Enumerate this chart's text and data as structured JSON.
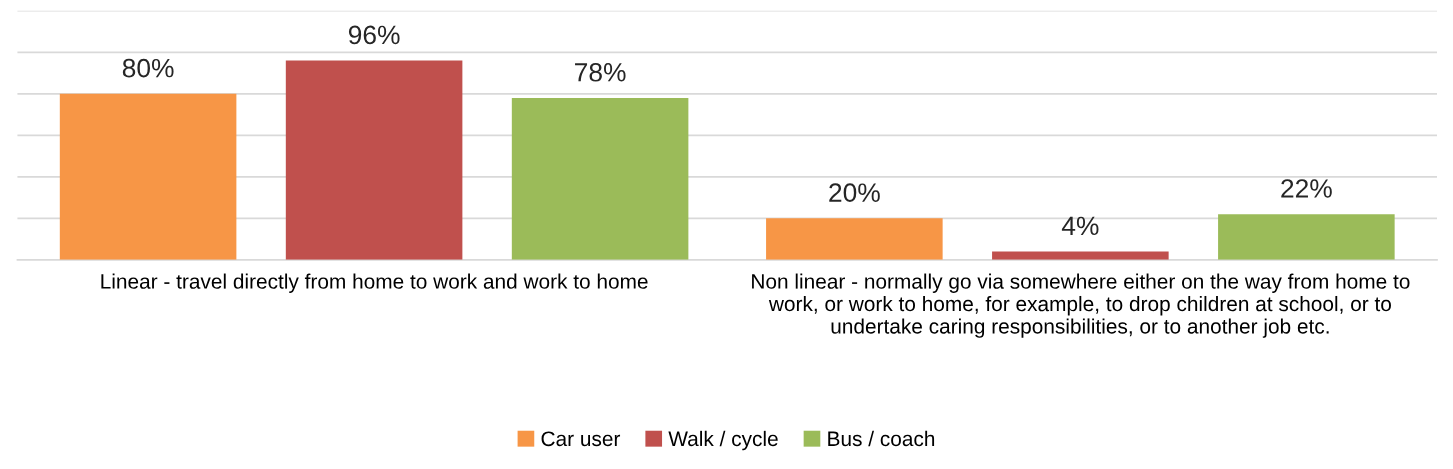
{
  "chart_data": {
    "type": "bar",
    "categories": [
      "Linear - travel directly from home to work and work to home",
      "Non linear - normally go via somewhere either on the way from home to work, or work to home, for example, to drop children at school, or to undertake caring responsibilities, or to another job etc."
    ],
    "series": [
      {
        "name": "Car user",
        "color": "#f79646",
        "values": [
          80,
          20
        ],
        "value_labels": [
          "80%",
          "20%"
        ]
      },
      {
        "name": "Walk / cycle",
        "color": "#c0504d",
        "values": [
          96,
          4
        ],
        "value_labels": [
          "96%",
          "4%"
        ]
      },
      {
        "name": "Bus / coach",
        "color": "#9bbb59",
        "values": [
          78,
          22
        ],
        "value_labels": [
          "78%",
          "22%"
        ]
      }
    ],
    "ylim": [
      0,
      120
    ],
    "yticks": [
      {
        "value": 0,
        "label": null
      },
      {
        "value": 20,
        "label": null
      },
      {
        "value": 40,
        "label": null
      },
      {
        "value": 60,
        "label": null
      },
      {
        "value": 80,
        "label": null
      },
      {
        "value": 100,
        "label": null
      },
      {
        "value": 120,
        "label": null
      }
    ],
    "grid": "y",
    "legend": "bottom",
    "tick_labels": "x"
  }
}
